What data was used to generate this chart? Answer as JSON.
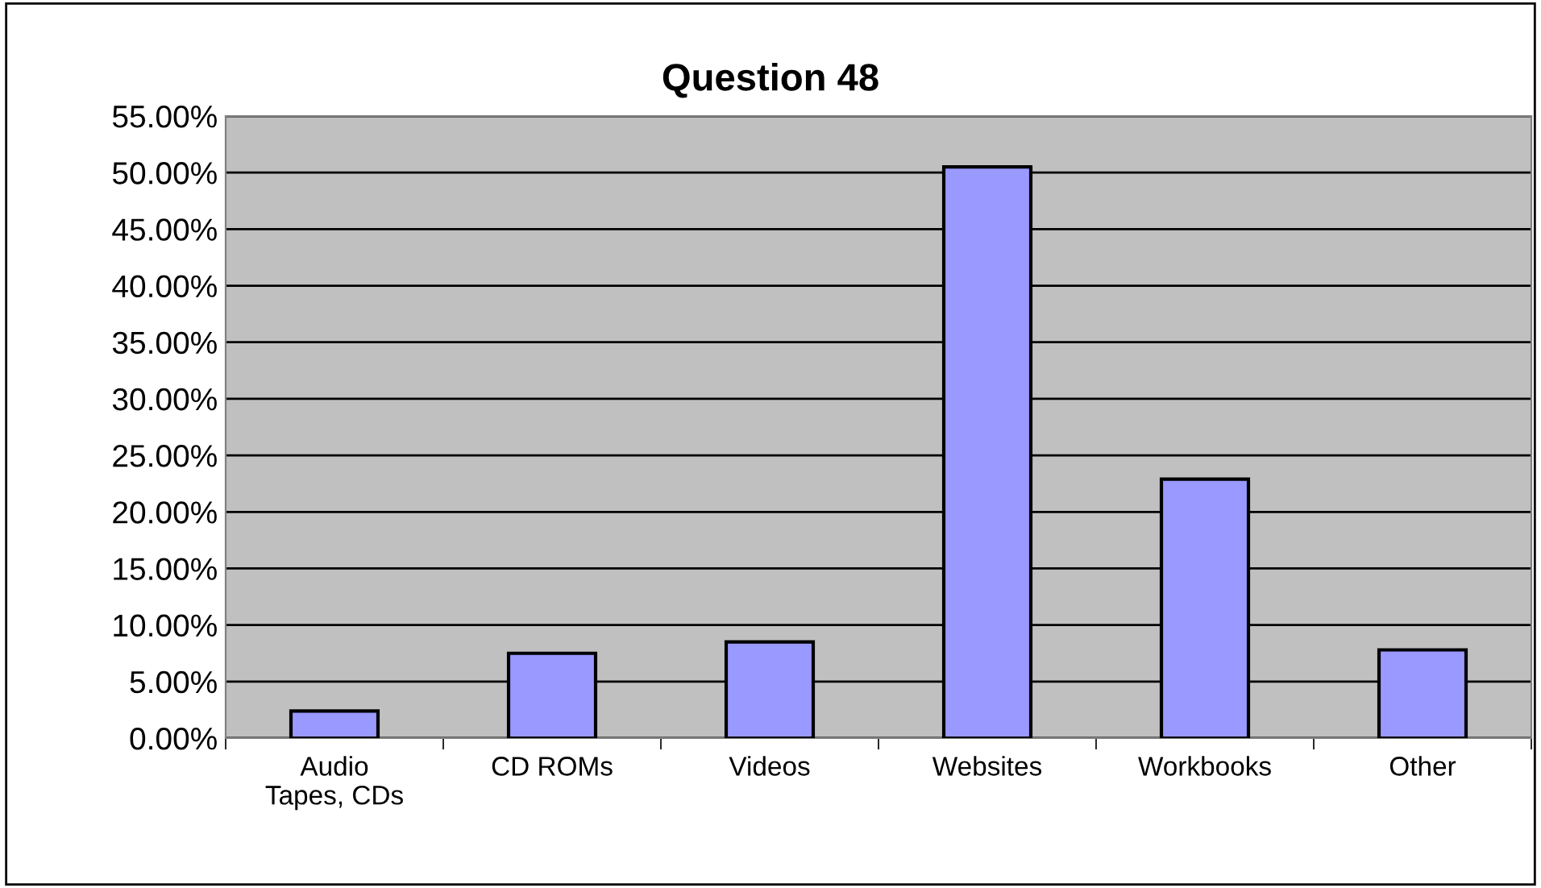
{
  "chart_data": {
    "type": "bar",
    "title": "Question 48",
    "categories": [
      "Audio\nTapes, CDs",
      "CD ROMs",
      "Videos",
      "Websites",
      "Workbooks",
      "Other"
    ],
    "values": [
      2.4,
      7.5,
      8.5,
      50.5,
      22.9,
      7.8
    ],
    "color": "#9999ff",
    "ylim": [
      0,
      55
    ],
    "yticks": [
      {
        "value": 0,
        "label": "0.00%"
      },
      {
        "value": 5,
        "label": "5.00%"
      },
      {
        "value": 10,
        "label": "10.00%"
      },
      {
        "value": 15,
        "label": "15.00%"
      },
      {
        "value": 20,
        "label": "20.00%"
      },
      {
        "value": 25,
        "label": "25.00%"
      },
      {
        "value": 30,
        "label": "30.00%"
      },
      {
        "value": 35,
        "label": "35.00%"
      },
      {
        "value": 40,
        "label": "40.00%"
      },
      {
        "value": 45,
        "label": "45.00%"
      },
      {
        "value": 50,
        "label": "50.00%"
      },
      {
        "value": 55,
        "label": "55.00%"
      }
    ],
    "grid": "y"
  }
}
